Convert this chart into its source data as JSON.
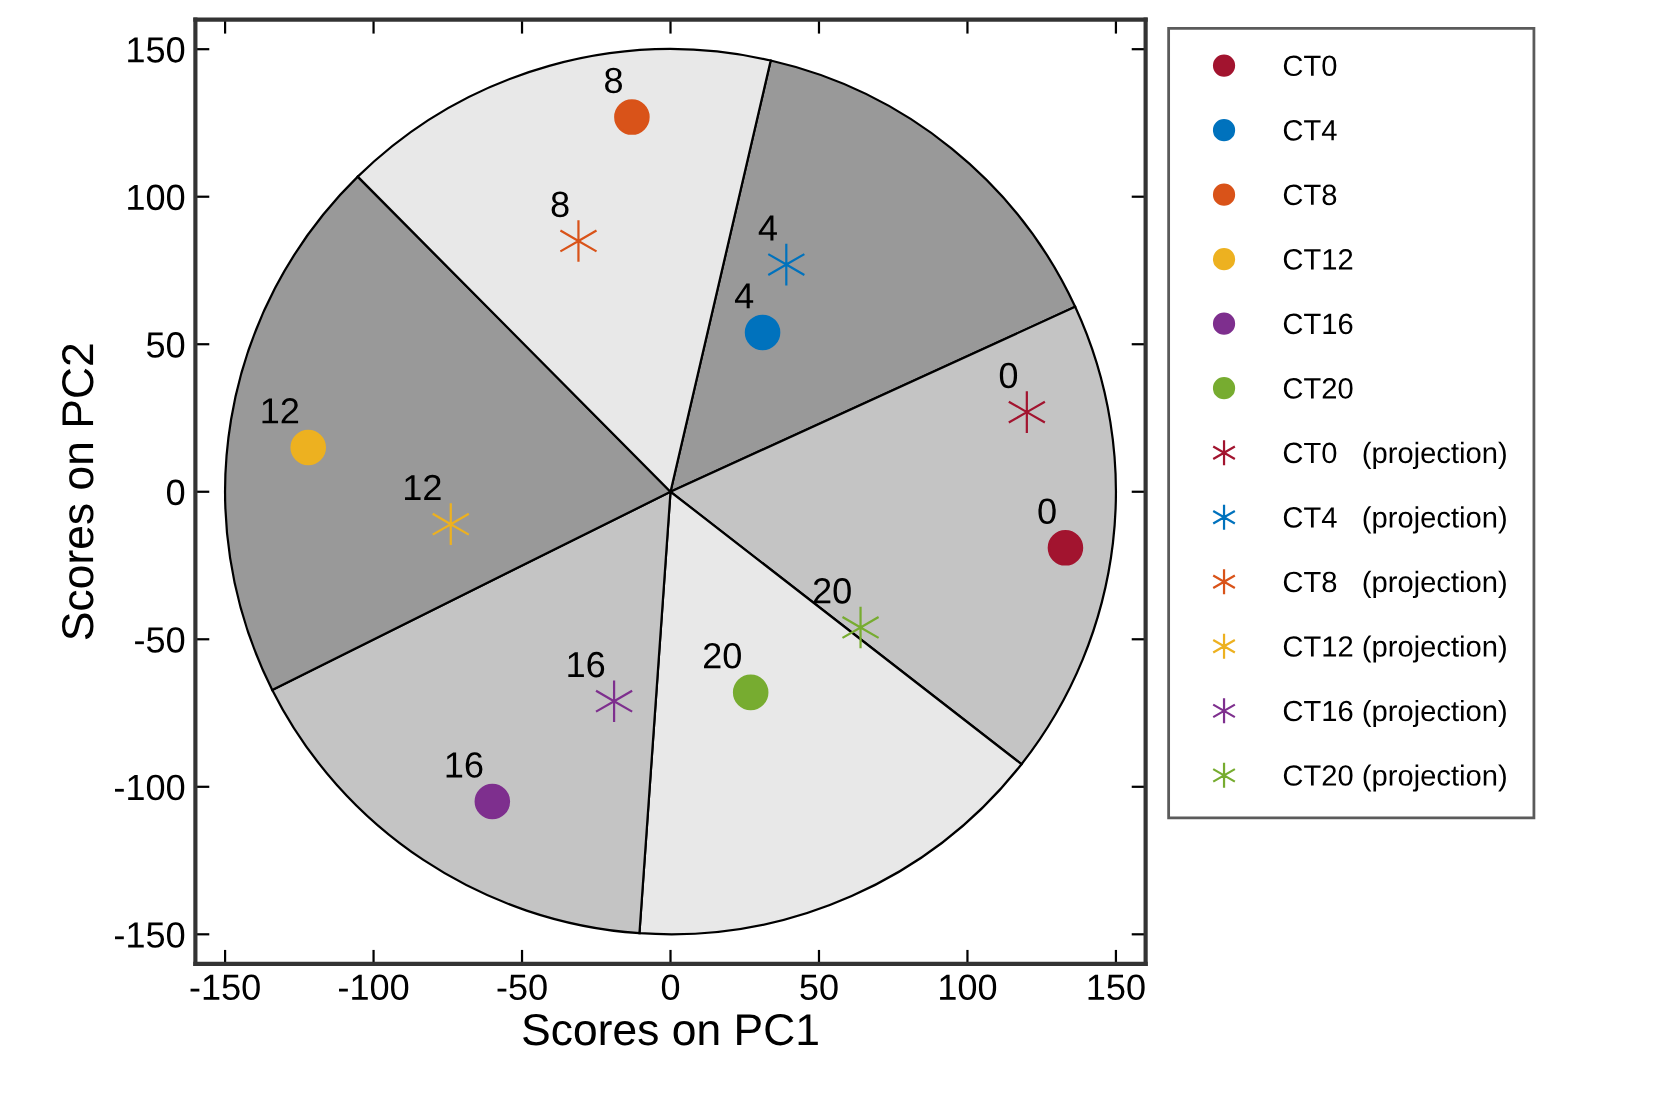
{
  "chart_data": {
    "type": "scatter",
    "xlabel": "Scores on PC1",
    "ylabel": "Scores on PC2",
    "xlim": [
      -160,
      160
    ],
    "ylim": [
      -160,
      160
    ],
    "xticks": [
      -150,
      -100,
      -50,
      0,
      50,
      100,
      150
    ],
    "yticks": [
      -150,
      -100,
      -50,
      0,
      50,
      100,
      150
    ],
    "grid": false,
    "legend": "right",
    "series": [
      {
        "name": "CT0",
        "color": "#a2142f",
        "marker": "circle",
        "x": [
          133
        ],
        "values": [
          -19
        ]
      },
      {
        "name": "CT4",
        "color": "#0072bd",
        "marker": "circle",
        "x": [
          31
        ],
        "values": [
          54
        ]
      },
      {
        "name": "CT8",
        "color": "#d95319",
        "marker": "circle",
        "x": [
          -13
        ],
        "values": [
          127
        ]
      },
      {
        "name": "CT12",
        "color": "#edb120",
        "marker": "circle",
        "x": [
          -122
        ],
        "values": [
          15
        ]
      },
      {
        "name": "CT16",
        "color": "#7e2f8e",
        "marker": "circle",
        "x": [
          -60
        ],
        "values": [
          -105
        ]
      },
      {
        "name": "CT20",
        "color": "#77ac30",
        "marker": "circle",
        "x": [
          27
        ],
        "values": [
          -68
        ]
      },
      {
        "name": "CT0   (projection)",
        "color": "#a2142f",
        "marker": "cross",
        "x": [
          120
        ],
        "values": [
          27
        ]
      },
      {
        "name": "CT4   (projection)",
        "color": "#0072bd",
        "marker": "cross",
        "x": [
          39
        ],
        "values": [
          77
        ]
      },
      {
        "name": "CT8   (projection)",
        "color": "#d95319",
        "marker": "cross",
        "x": [
          -31
        ],
        "values": [
          85
        ]
      },
      {
        "name": "CT12 (projection)",
        "color": "#edb120",
        "marker": "cross",
        "x": [
          -74
        ],
        "values": [
          -11
        ]
      },
      {
        "name": "CT16 (projection)",
        "color": "#7e2f8e",
        "marker": "cross",
        "x": [
          -19
        ],
        "values": [
          -71
        ]
      },
      {
        "name": "CT20 (projection)",
        "color": "#77ac30",
        "marker": "cross",
        "x": [
          64
        ],
        "values": [
          -46
        ]
      }
    ],
    "annotations": [
      {
        "text": "0",
        "x": 133,
        "y": -19
      },
      {
        "text": "4",
        "x": 31,
        "y": 54
      },
      {
        "text": "8",
        "x": -13,
        "y": 127
      },
      {
        "text": "12",
        "x": -122,
        "y": 15
      },
      {
        "text": "16",
        "x": -60,
        "y": -105
      },
      {
        "text": "20",
        "x": 27,
        "y": -68
      },
      {
        "text": "0",
        "x": 120,
        "y": 27
      },
      {
        "text": "4",
        "x": 39,
        "y": 77
      },
      {
        "text": "8",
        "x": -31,
        "y": 85
      },
      {
        "text": "12",
        "x": -74,
        "y": -11
      },
      {
        "text": "16",
        "x": -19,
        "y": -71
      },
      {
        "text": "20",
        "x": 64,
        "y": -46
      }
    ]
  }
}
